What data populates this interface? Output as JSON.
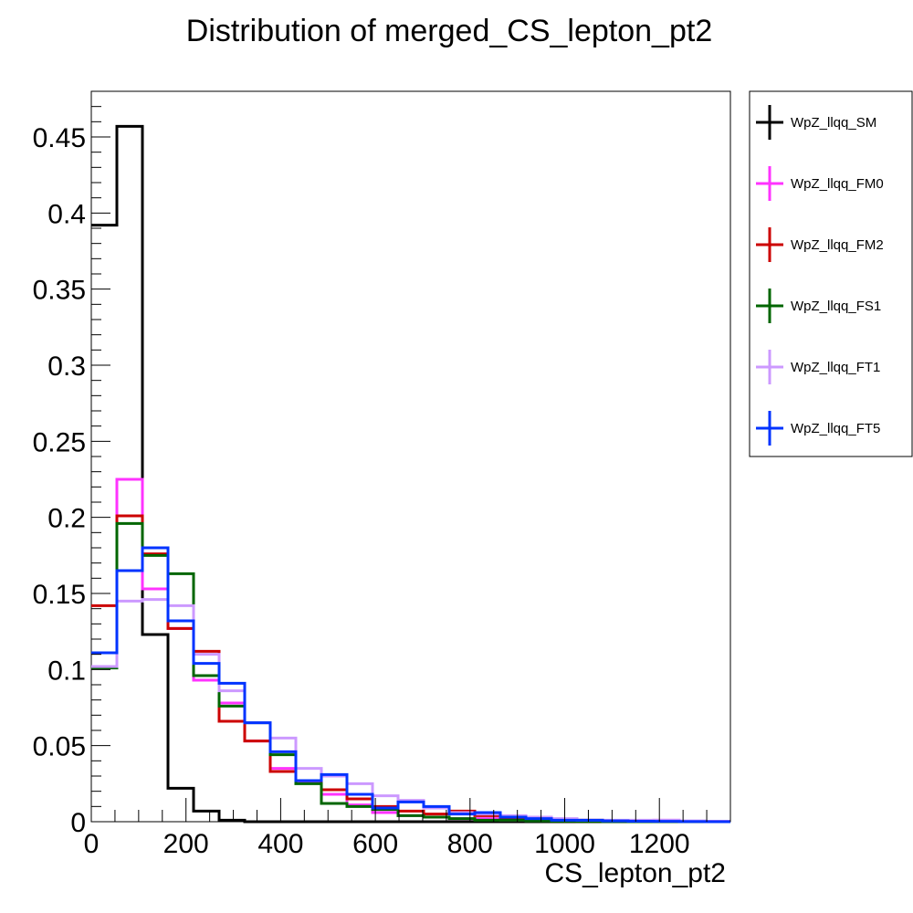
{
  "chart_data": {
    "type": "histogram",
    "title": "Distribution of merged_CS_lepton_pt2",
    "xlabel": "CS_lepton_pt2",
    "ylabel": "",
    "xlim": [
      0,
      1350
    ],
    "ylim": [
      0,
      0.48
    ],
    "bin_width": 54,
    "x_ticks": [
      0,
      200,
      400,
      600,
      800,
      1000,
      1200
    ],
    "x_tick_labels": [
      "0",
      "200",
      "400",
      "600",
      "800",
      "1000",
      "1200"
    ],
    "y_ticks": [
      0,
      0.05,
      0.1,
      0.15,
      0.2,
      0.25,
      0.3,
      0.35,
      0.4,
      0.45
    ],
    "y_tick_labels": [
      "0",
      "0.05",
      "0.1",
      "0.15",
      "0.2",
      "0.25",
      "0.3",
      "0.35",
      "0.4",
      "0.45"
    ],
    "grid": false,
    "legend_position": "outside-right-top",
    "series": [
      {
        "name": "WpZ_llqq_SM",
        "color": "#000000",
        "values": [
          0.392,
          0.457,
          0.123,
          0.022,
          0.007,
          0.001,
          0,
          0,
          0,
          0,
          0,
          0,
          0,
          0,
          0,
          0,
          0,
          0,
          0,
          0,
          0,
          0,
          0,
          0,
          0
        ]
      },
      {
        "name": "WpZ_llqq_FM0",
        "color": "#ff33ff",
        "values": [
          0.102,
          0.225,
          0.153,
          0.127,
          0.093,
          0.078,
          0.053,
          0.035,
          0.026,
          0.018,
          0.011,
          0.006,
          0.004,
          0.003,
          0.002,
          0.002,
          0.001,
          0.001,
          0.001,
          0.0005,
          0.0005,
          0.0003,
          0.001,
          0.0003,
          0.0002
        ]
      },
      {
        "name": "WpZ_llqq_FM2",
        "color": "#cc0000",
        "values": [
          0.142,
          0.201,
          0.176,
          0.127,
          0.112,
          0.066,
          0.053,
          0.033,
          0.027,
          0.021,
          0.015,
          0.01,
          0.007,
          0.005,
          0.007,
          0.004,
          0.002,
          0.001,
          0.001,
          0.001,
          0.0005,
          0.0003,
          0.0002,
          0.0002,
          0.0001
        ]
      },
      {
        "name": "WpZ_llqq_FS1",
        "color": "#006600",
        "values": [
          0.101,
          0.196,
          0.175,
          0.163,
          0.096,
          0.076,
          0.065,
          0.044,
          0.025,
          0.012,
          0.01,
          0.008,
          0.004,
          0.003,
          0.002,
          0.001,
          0.001,
          0.0005,
          0.0003,
          0.0002,
          0.0001,
          0,
          0,
          0,
          0
        ]
      },
      {
        "name": "WpZ_llqq_FT1",
        "color": "#cc99ff",
        "values": [
          0.102,
          0.145,
          0.146,
          0.142,
          0.11,
          0.086,
          0.065,
          0.055,
          0.035,
          0.03,
          0.025,
          0.017,
          0.014,
          0.009,
          0.006,
          0.005,
          0.004,
          0.003,
          0.002,
          0.001,
          0.001,
          0.001,
          0.001,
          0.0005,
          0.0002
        ]
      },
      {
        "name": "WpZ_llqq_FT5",
        "color": "#0033ff",
        "values": [
          0.111,
          0.165,
          0.18,
          0.132,
          0.104,
          0.091,
          0.065,
          0.046,
          0.027,
          0.031,
          0.018,
          0.009,
          0.013,
          0.01,
          0.005,
          0.006,
          0.003,
          0.002,
          0.001,
          0.001,
          0.0005,
          0.0003,
          0.0002,
          0.0001,
          0
        ]
      }
    ]
  }
}
